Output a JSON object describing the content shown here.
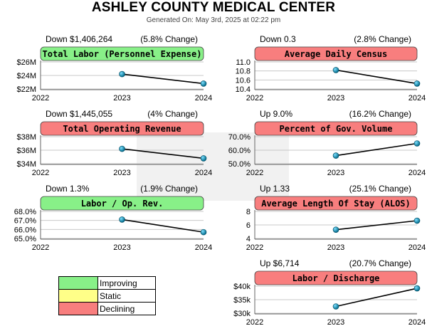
{
  "page": {
    "title": "ASHLEY COUNTY MEDICAL CENTER",
    "generated": "Generated On: May 3rd, 2025 at 02:22 pm"
  },
  "colors": {
    "improving": "#88f088",
    "static": "#ffff88",
    "declining": "#f87e7e"
  },
  "legend": [
    {
      "label": "Improving",
      "status": "improving"
    },
    {
      "label": "Static",
      "status": "static"
    },
    {
      "label": "Declining",
      "status": "declining"
    }
  ],
  "chart_data": [
    {
      "type": "line",
      "title": "Total Labor (Personnel Expense)",
      "status": "improving",
      "change": "Down $1,406,264",
      "pct": "(5.8% Change)",
      "x": [
        "2022",
        "2023",
        "2024"
      ],
      "values": [
        null,
        24.2,
        22.8
      ],
      "ylim": [
        22,
        26
      ],
      "yticks": [
        22,
        24,
        26
      ],
      "ytick_labels": [
        "$22M",
        "$24M",
        "$26M"
      ]
    },
    {
      "type": "line",
      "title": "Average Daily Census",
      "status": "declining",
      "change": "Down 0.3",
      "pct": "(2.8% Change)",
      "x": [
        "2022",
        "2023",
        "2024"
      ],
      "values": [
        null,
        10.82,
        10.52
      ],
      "ylim": [
        10.4,
        11.0
      ],
      "yticks": [
        10.4,
        10.6,
        10.8,
        11.0
      ],
      "ytick_labels": [
        "10.4",
        "10.6",
        "10.8",
        "11.0"
      ]
    },
    {
      "type": "line",
      "title": "Total Operating Revenue",
      "status": "declining",
      "change": "Down $1,445,055",
      "pct": "(4% Change)",
      "x": [
        "2022",
        "2023",
        "2024"
      ],
      "values": [
        null,
        36.2,
        34.8
      ],
      "ylim": [
        34,
        38
      ],
      "yticks": [
        34,
        36,
        38
      ],
      "ytick_labels": [
        "$34M",
        "$36M",
        "$38M"
      ]
    },
    {
      "type": "line",
      "title": "Percent of Gov. Volume",
      "status": "declining",
      "change": "Up 9.0%",
      "pct": "(16.2% Change)",
      "x": [
        "2022",
        "2023",
        "2024"
      ],
      "values": [
        null,
        56.0,
        65.0
      ],
      "ylim": [
        50,
        70
      ],
      "yticks": [
        50,
        60,
        70
      ],
      "ytick_labels": [
        "50.0%",
        "60.0%",
        "70.0%"
      ]
    },
    {
      "type": "line",
      "title": "Labor / Op. Rev.",
      "status": "improving",
      "change": "Down 1.3%",
      "pct": "(1.9% Change)",
      "x": [
        "2022",
        "2023",
        "2024"
      ],
      "values": [
        null,
        67.1,
        65.7
      ],
      "ylim": [
        65,
        68
      ],
      "yticks": [
        65,
        66,
        67,
        68
      ],
      "ytick_labels": [
        "65.0%",
        "66.0%",
        "67.0%",
        "68.0%"
      ]
    },
    {
      "type": "line",
      "title": "Average Length Of Stay (ALOS)",
      "status": "declining",
      "change": "Up 1.33",
      "pct": "(25.1% Change)",
      "x": [
        "2022",
        "2023",
        "2024"
      ],
      "values": [
        null,
        5.3,
        6.63
      ],
      "ylim": [
        4,
        8
      ],
      "yticks": [
        4,
        6,
        8
      ],
      "ytick_labels": [
        "4",
        "6",
        "8"
      ]
    },
    {
      "type": "line",
      "title": "Labor / Discharge",
      "status": "declining",
      "change": "Up $6,714",
      "pct": "(20.7% Change)",
      "x": [
        "2022",
        "2023",
        "2024"
      ],
      "values": [
        null,
        32.5,
        39.2
      ],
      "ylim": [
        30,
        40
      ],
      "yticks": [
        30,
        35,
        40
      ],
      "ytick_labels": [
        "$30k",
        "$35k",
        "$40k"
      ]
    }
  ]
}
